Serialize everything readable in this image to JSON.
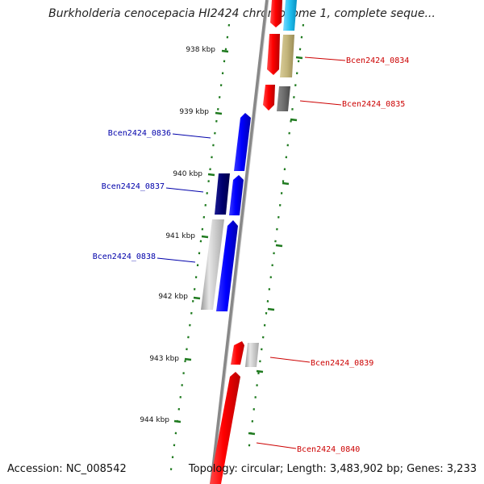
{
  "title": "Burkholderia cenocepacia HI2424 chromosome 1, complete seque...",
  "footer": {
    "accession": "Accession: NC_008542",
    "topology": "Topology: circular; Length: 3,483,902 bp; Genes: 3,233"
  },
  "scale_labels": [
    "938 kbp",
    "939 kbp",
    "940 kbp",
    "941 kbp",
    "942 kbp",
    "943 kbp",
    "944 kbp"
  ],
  "genes": [
    {
      "label": "Bcen2424_0834",
      "color": "#cc0000"
    },
    {
      "label": "Bcen2424_0835",
      "color": "#cc0000"
    },
    {
      "label": "Bcen2424_0836",
      "color": "#0000aa"
    },
    {
      "label": "Bcen2424_0837",
      "color": "#0000aa"
    },
    {
      "label": "Bcen2424_0838",
      "color": "#0000aa"
    },
    {
      "label": "Bcen2424_0839",
      "color": "#cc0000"
    },
    {
      "label": "Bcen2424_0840",
      "color": "#cc0000"
    }
  ],
  "colors": {
    "forward_strand": "#ff0000",
    "reverse_strand": "#0000ff",
    "dark_blue": "#00006e",
    "grey": "#bdbdbd",
    "dark_grey": "#6e6e6e",
    "khaki": "#c2b47a",
    "cyan": "#20c0f0",
    "ticks": "#1f7a1f",
    "backbone": "#777777"
  }
}
